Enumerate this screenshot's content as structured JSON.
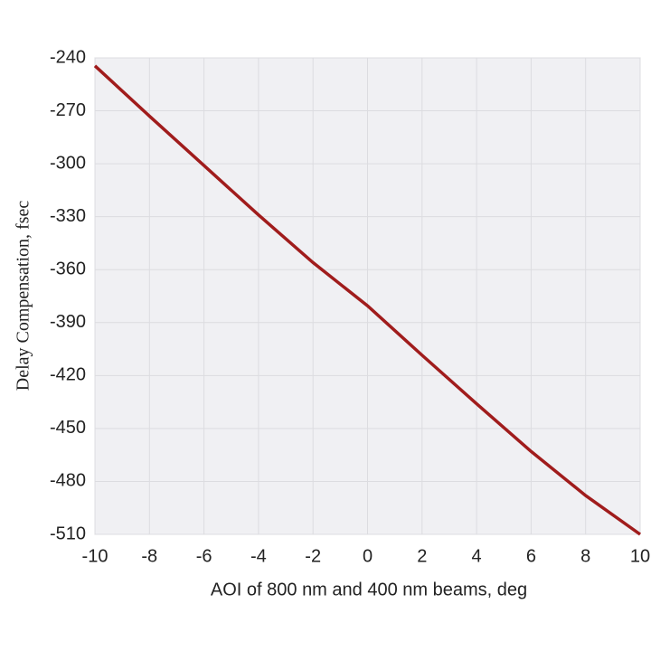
{
  "chart_data": {
    "type": "line",
    "xlabel": "AOI of 800 nm and 400 nm beams, deg",
    "ylabel": "Delay Compensation, fsec",
    "x": [
      -10,
      -8,
      -6,
      -4,
      -2,
      0,
      2,
      4,
      6,
      8,
      10
    ],
    "series": [
      {
        "color": "#a01c1c",
        "values": [
          -244.5,
          -273,
          -301,
          -329,
          -356,
          -380.5,
          -408.5,
          -436,
          -463,
          -488,
          -510
        ]
      }
    ],
    "xlim": [
      -10,
      10
    ],
    "xticks": [
      -10,
      -8,
      -6,
      -4,
      -2,
      0,
      2,
      4,
      6,
      8,
      10
    ],
    "ylim": [
      -510,
      -240
    ],
    "yticks": [
      -510,
      -480,
      -450,
      -420,
      -390,
      -360,
      -330,
      -300,
      -270,
      -240
    ],
    "grid": true
  }
}
